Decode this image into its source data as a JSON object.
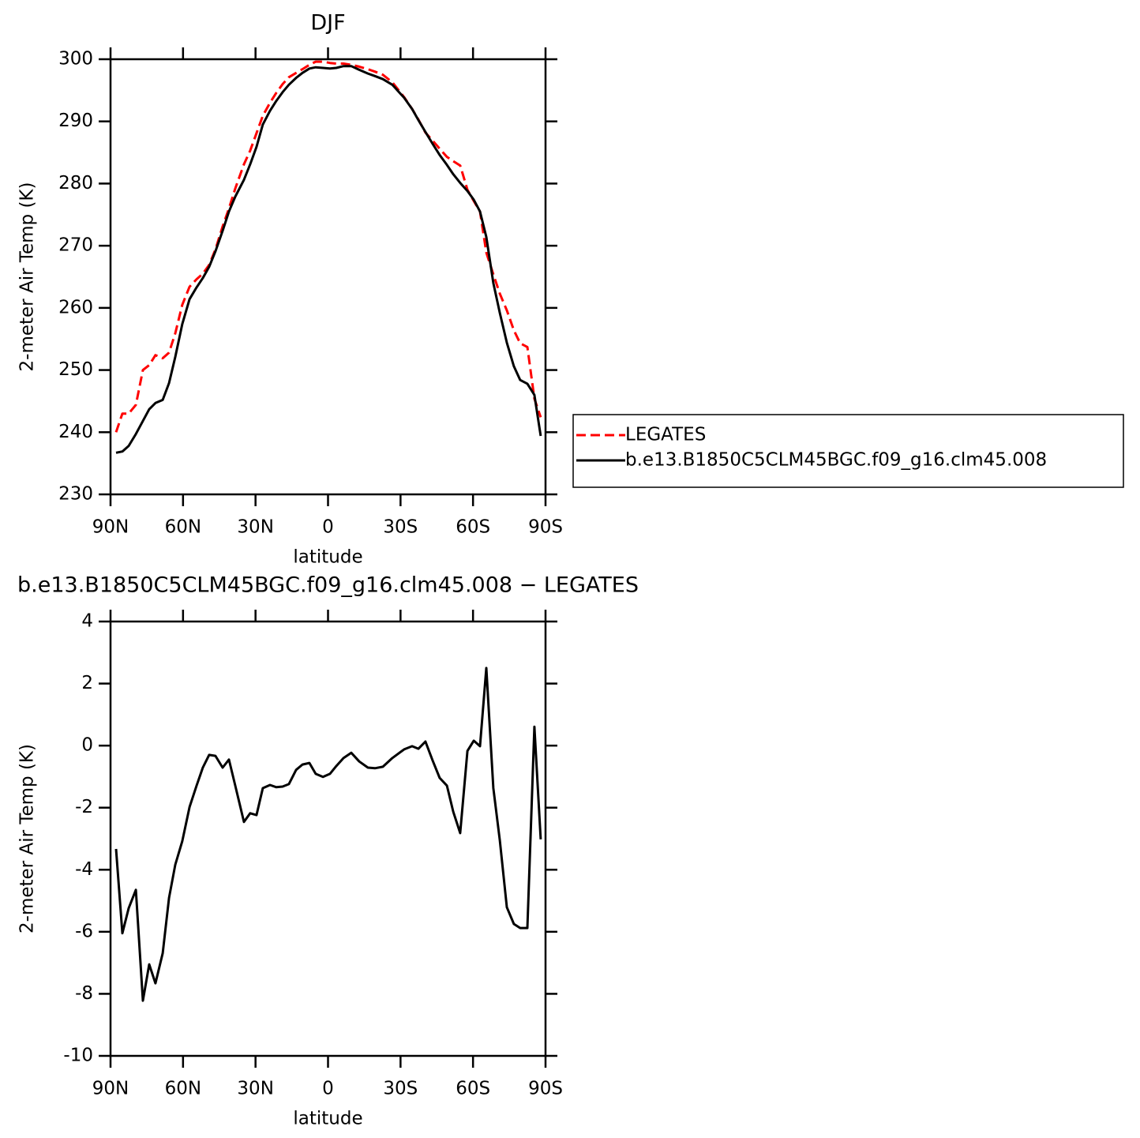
{
  "chart_data": [
    {
      "type": "line",
      "title": "DJF",
      "xlabel": "latitude",
      "ylabel": "2-meter Air Temp (K)",
      "x": [
        87.7,
        85.1,
        82.5,
        79.5,
        76.6,
        74.0,
        71.4,
        68.4,
        65.8,
        63.2,
        60.3,
        57.3,
        54.4,
        51.8,
        49.2,
        46.6,
        43.6,
        41.0,
        38.4,
        34.8,
        32.2,
        29.6,
        27.0,
        24.0,
        21.4,
        18.8,
        16.2,
        13.2,
        10.6,
        7.7,
        5.1,
        2.1,
        -0.8,
        -3.4,
        -6.4,
        -9.6,
        -12.9,
        -16.5,
        -19.4,
        -22.7,
        -26.6,
        -31.5,
        -34.8,
        -37.4,
        -40.3,
        -43.3,
        -46.2,
        -49.2,
        -51.8,
        -54.7,
        -57.7,
        -60.3,
        -62.9,
        -65.5,
        -68.4,
        -71.1,
        -74.0,
        -76.9,
        -79.5,
        -82.5,
        -85.4,
        -88.0
      ],
      "xlim": [
        90,
        -90
      ],
      "xticks": [
        {
          "value": 90,
          "label": "90N"
        },
        {
          "value": 60,
          "label": "60N"
        },
        {
          "value": 30,
          "label": "30N"
        },
        0,
        {
          "value": -30,
          "label": "30S"
        },
        {
          "value": -60,
          "label": "60S"
        },
        {
          "value": -90,
          "label": "90S"
        }
      ],
      "ylim": [
        230,
        300
      ],
      "yticks": [
        230,
        240,
        250,
        260,
        270,
        280,
        290,
        300
      ],
      "legend": "right",
      "series": [
        {
          "name": "LEGATES",
          "color": "#ff0000",
          "dashed": true,
          "values": [
            240.0,
            243.0,
            243.0,
            244.4,
            250.0,
            250.8,
            252.4,
            251.9,
            252.8,
            255.9,
            260.5,
            263.4,
            264.6,
            265.5,
            266.9,
            269.4,
            273.1,
            276.0,
            279.2,
            283.1,
            285.3,
            288.1,
            290.9,
            293.0,
            294.6,
            296.0,
            297.1,
            297.8,
            298.4,
            299.1,
            299.6,
            299.6,
            299.4,
            299.3,
            299.3,
            299.1,
            298.8,
            298.4,
            298.0,
            297.5,
            296.3,
            293.9,
            292.0,
            290.3,
            288.2,
            286.9,
            285.6,
            284.3,
            283.6,
            282.9,
            279.0,
            277.2,
            275.5,
            268.9,
            265.4,
            262.3,
            259.6,
            256.4,
            254.3,
            253.7,
            245.4,
            242.4
          ]
        },
        {
          "name": "b.e13.B1850C5CLM45BGC.f09_g16.clm45.008",
          "color": "#000000",
          "values": [
            236.7,
            236.9,
            237.8,
            239.7,
            241.8,
            243.7,
            244.7,
            245.2,
            247.9,
            252.1,
            257.4,
            261.4,
            263.3,
            264.8,
            266.6,
            269.1,
            272.4,
            275.5,
            277.9,
            280.6,
            283.1,
            285.9,
            289.5,
            291.7,
            293.3,
            294.7,
            295.9,
            297.0,
            297.8,
            298.5,
            298.7,
            298.6,
            298.5,
            298.6,
            298.9,
            298.9,
            298.3,
            297.7,
            297.3,
            296.8,
            295.9,
            293.8,
            292.0,
            290.2,
            288.3,
            286.4,
            284.6,
            283.0,
            281.5,
            280.1,
            278.8,
            277.4,
            275.5,
            271.4,
            264.0,
            259.2,
            254.4,
            250.6,
            248.4,
            247.8,
            246.0,
            239.4
          ]
        }
      ]
    },
    {
      "type": "line",
      "title": "b.e13.B1850C5CLM45BGC.f09_g16.clm45.008 − LEGATES",
      "xlabel": "latitude",
      "ylabel": "2-meter Air Temp (K)",
      "x": [
        87.7,
        85.1,
        82.5,
        79.5,
        76.6,
        74.0,
        71.4,
        68.4,
        65.8,
        63.2,
        60.3,
        57.3,
        54.4,
        51.8,
        49.2,
        46.6,
        43.6,
        41.0,
        38.4,
        34.8,
        32.2,
        29.6,
        27.0,
        24.0,
        21.4,
        18.8,
        16.2,
        13.2,
        10.6,
        7.7,
        5.1,
        2.1,
        -0.8,
        -3.4,
        -6.4,
        -9.6,
        -12.9,
        -16.5,
        -19.4,
        -22.7,
        -26.6,
        -31.5,
        -34.8,
        -37.4,
        -40.3,
        -43.3,
        -46.2,
        -49.2,
        -51.8,
        -54.7,
        -57.7,
        -60.3,
        -62.9,
        -65.5,
        -68.4,
        -71.1,
        -74.0,
        -76.9,
        -79.5,
        -82.5,
        -85.4,
        -88.0
      ],
      "xlim": [
        90,
        -90
      ],
      "xticks": [
        {
          "value": 90,
          "label": "90N"
        },
        {
          "value": 60,
          "label": "60N"
        },
        {
          "value": 30,
          "label": "30N"
        },
        0,
        {
          "value": -30,
          "label": "30S"
        },
        {
          "value": -60,
          "label": "60S"
        },
        {
          "value": -90,
          "label": "90S"
        }
      ],
      "ylim": [
        -10,
        4
      ],
      "yticks": [
        -10,
        -8,
        -6,
        -4,
        -2,
        0,
        2,
        4
      ],
      "series": [
        {
          "color": "#000000",
          "values": [
            -3.33,
            -6.05,
            -5.24,
            -4.65,
            -8.22,
            -7.05,
            -7.66,
            -6.69,
            -4.91,
            -3.84,
            -3.08,
            -1.98,
            -1.29,
            -0.71,
            -0.3,
            -0.33,
            -0.71,
            -0.45,
            -1.29,
            -2.46,
            -2.18,
            -2.24,
            -1.37,
            -1.27,
            -1.34,
            -1.32,
            -1.24,
            -0.78,
            -0.61,
            -0.56,
            -0.91,
            -1.01,
            -0.91,
            -0.66,
            -0.4,
            -0.23,
            -0.51,
            -0.71,
            -0.73,
            -0.68,
            -0.4,
            -0.12,
            -0.02,
            -0.1,
            0.13,
            -0.48,
            -1.04,
            -1.29,
            -2.13,
            -2.82,
            -0.17,
            0.16,
            -0.02,
            2.5,
            -1.37,
            -3.05,
            -5.21,
            -5.75,
            -5.88,
            -5.88,
            0.61,
            -3.02
          ]
        }
      ]
    }
  ]
}
